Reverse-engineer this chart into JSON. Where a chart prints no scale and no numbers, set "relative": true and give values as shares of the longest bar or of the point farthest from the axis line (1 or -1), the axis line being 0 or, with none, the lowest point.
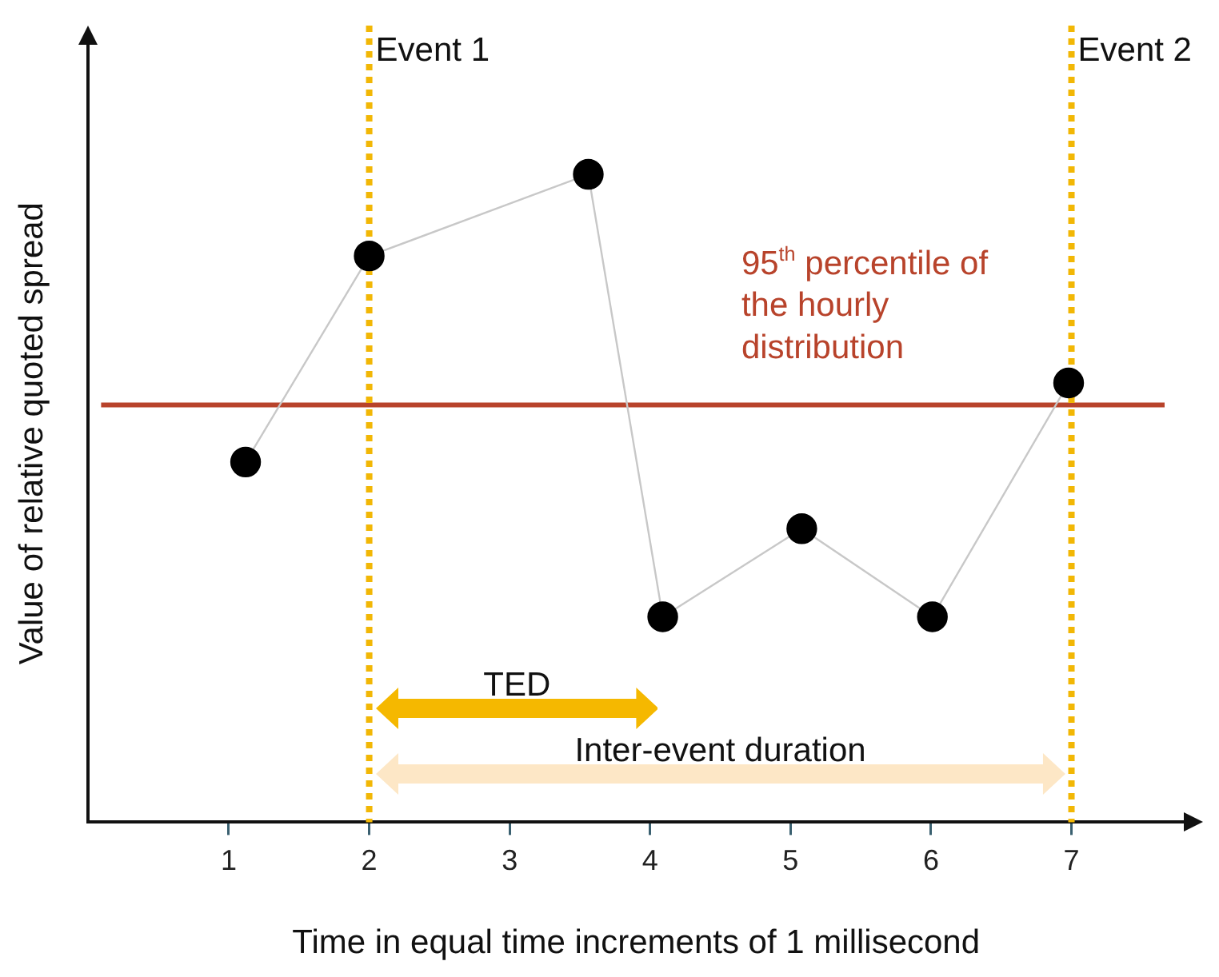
{
  "chart_data": {
    "type": "line",
    "relative": true,
    "xlabel": "Time in equal time increments of 1 millisecond",
    "ylabel": "Value of relative quoted spread",
    "xlim": [
      0,
      7.8
    ],
    "xticks": [
      1,
      2,
      3,
      4,
      5,
      6,
      7
    ],
    "grid": false,
    "legend": false,
    "marker": "circle",
    "series": [
      {
        "color": "#000000",
        "x": [
          1.12,
          2.0,
          3.56,
          4.09,
          5.08,
          6.01,
          6.98
        ],
        "values": [
          0.556,
          0.874,
          1,
          0.317,
          0.453,
          0.317,
          0.678
        ]
      }
    ],
    "ref_lines": [
      {
        "axis": "y",
        "value": 0.644,
        "label": "95$^{th}$ percentile of the hourly distribution",
        "color": "#b8432b",
        "line_style": "solid"
      },
      {
        "axis": "x",
        "value": 2,
        "label": "Event 1",
        "color": "#f2b705",
        "line_style": "dotted"
      },
      {
        "axis": "x",
        "value": 7,
        "label": "Event 2",
        "color": "#f2b705",
        "line_style": "dotted"
      }
    ],
    "annotations": [
      "TED",
      "Inter-event duration"
    ]
  }
}
